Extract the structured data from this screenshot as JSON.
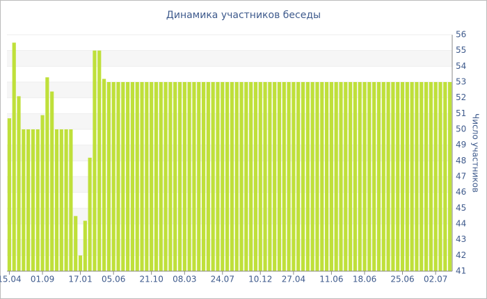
{
  "chart_data": {
    "type": "bar",
    "title": "Динамика участников беседы",
    "y_label": "Число участников",
    "categories": [
      "15.04",
      null,
      null,
      null,
      null,
      null,
      null,
      "01.09",
      null,
      null,
      null,
      null,
      null,
      null,
      null,
      "17.01",
      null,
      null,
      null,
      null,
      null,
      null,
      "05.06",
      null,
      null,
      null,
      null,
      null,
      null,
      null,
      "21.10",
      null,
      null,
      null,
      null,
      null,
      null,
      "08.03",
      null,
      null,
      null,
      null,
      null,
      null,
      null,
      "24.07",
      null,
      null,
      null,
      null,
      null,
      null,
      null,
      "10.12",
      null,
      null,
      null,
      null,
      null,
      null,
      "27.04",
      null,
      null,
      null,
      null,
      null,
      null,
      null,
      "11.06",
      null,
      null,
      null,
      null,
      null,
      null,
      "18.06",
      null,
      null,
      null,
      null,
      null,
      null,
      null,
      "25.06",
      null,
      null,
      null,
      null,
      null,
      null,
      "02.07",
      null,
      null,
      null
    ],
    "values": [
      50.7,
      55.5,
      52.1,
      50,
      50,
      50,
      50,
      50.9,
      53.3,
      52.4,
      50,
      50,
      50,
      50,
      44.5,
      42,
      44.2,
      48.2,
      55,
      55,
      53.2,
      53,
      53,
      53,
      53,
      53,
      53,
      53,
      53,
      53,
      53,
      53,
      53,
      53,
      53,
      53,
      53,
      53,
      53,
      53,
      53,
      53,
      53,
      53,
      53,
      53,
      53,
      53,
      53,
      53,
      53,
      53,
      53,
      53,
      53,
      53,
      53,
      53,
      53,
      53,
      53,
      53,
      53,
      53,
      53,
      53,
      53,
      53,
      53,
      53,
      53,
      53,
      53,
      53,
      53,
      53,
      53,
      53,
      53,
      53,
      53,
      53,
      53,
      53,
      53,
      53,
      53,
      53,
      53,
      53,
      53,
      53,
      53,
      53
    ],
    "color": "#bfe03a",
    "ylim": [
      41,
      56
    ],
    "yticks": [
      41,
      42,
      43,
      44,
      45,
      46,
      47,
      48,
      49,
      50,
      51,
      52,
      53,
      54,
      55,
      56
    ],
    "grid": true
  }
}
